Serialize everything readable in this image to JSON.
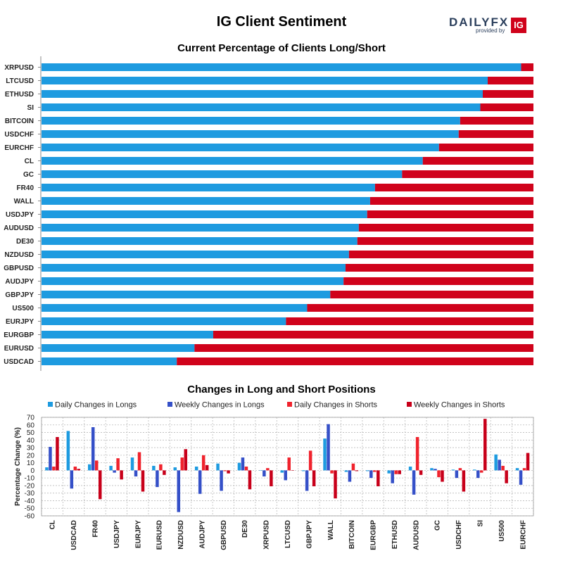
{
  "header": {
    "title": "IG Client Sentiment",
    "logo_text": "DAILYFX",
    "logo_sub": "provided by",
    "logo_badge": "IG"
  },
  "colors": {
    "long": "#1e9be0",
    "short": "#d0021b",
    "daily_long": "#1e9be0",
    "weekly_long": "#3550c8",
    "daily_short": "#f0232d",
    "weekly_short": "#c8001a"
  },
  "chart_data": [
    {
      "type": "bar",
      "orientation": "horizontal",
      "stacked": true,
      "title": "Current Percentage of Clients Long/Short",
      "xlim": [
        0,
        100
      ],
      "categories": [
        "XRPUSD",
        "LTCUSD",
        "ETHUSD",
        "SI",
        "BITCOIN",
        "USDCHF",
        "EURCHF",
        "CL",
        "GC",
        "FR40",
        "WALL",
        "USDJPY",
        "AUDUSD",
        "DE30",
        "NZDUSD",
        "GBPUSD",
        "AUDJPY",
        "GBPJPY",
        "US500",
        "EURJPY",
        "EURGBP",
        "EURUSD",
        "USDCAD"
      ],
      "series": [
        {
          "values": [
            97.5,
            90.7,
            89.7,
            89.2,
            85.1,
            84.8,
            80.8,
            77.5,
            73.3,
            67.8,
            66.8,
            66.2,
            64.5,
            64.2,
            62.5,
            61.8,
            61.4,
            58.7,
            54.0,
            49.7,
            34.9,
            31.1,
            27.5
          ]
        },
        {
          "values": [
            2.5,
            9.3,
            10.3,
            10.8,
            14.9,
            15.2,
            19.2,
            22.5,
            26.7,
            32.2,
            33.2,
            33.8,
            35.5,
            35.8,
            37.5,
            38.2,
            38.6,
            41.3,
            46.0,
            50.3,
            65.1,
            68.9,
            72.5
          ]
        }
      ]
    },
    {
      "type": "bar",
      "title": "Changes in Long and Short Positions",
      "ylabel": "Percentage Change (%)",
      "ylim": [
        -60,
        70
      ],
      "yticks": [
        70,
        60,
        50,
        40,
        30,
        20,
        10,
        0,
        -10,
        -20,
        -30,
        -40,
        -50,
        -60
      ],
      "categories": [
        "CL",
        "USDCAD",
        "FR40",
        "USDJPY",
        "EURJPY",
        "EURUSD",
        "NZDUSD",
        "AUDJPY",
        "GBPUSD",
        "DE30",
        "XRPUSD",
        "LTCUSD",
        "GBPJPY",
        "WALL",
        "BITCOIN",
        "EURGBP",
        "ETHUSD",
        "AUDUSD",
        "GC",
        "USDCHF",
        "SI",
        "US500",
        "EURCHF"
      ],
      "series": [
        {
          "name": "Daily Changes in Longs",
          "values": [
            4,
            52,
            8,
            6,
            17,
            6,
            4,
            5,
            9,
            10,
            0,
            -3,
            -1,
            42,
            -2,
            -1,
            -4,
            5,
            3,
            1,
            1,
            21,
            3
          ]
        },
        {
          "name": "Weekly Changes in Longs",
          "values": [
            31,
            -24,
            57,
            -3,
            -8,
            -22,
            -55,
            -31,
            -27,
            17,
            -8,
            -13,
            -27,
            61,
            -15,
            -10,
            -17,
            -32,
            2,
            -10,
            -10,
            14,
            -19
          ]
        },
        {
          "name": "Daily Changes in Shorts",
          "values": [
            5,
            5,
            13,
            16,
            24,
            8,
            17,
            20,
            -1,
            5,
            3,
            17,
            26,
            -4,
            9,
            -2,
            -5,
            44,
            -9,
            3,
            -3,
            6,
            3
          ]
        },
        {
          "name": "Weekly Changes in Shorts",
          "values": [
            44,
            2,
            -38,
            -12,
            -28,
            -6,
            28,
            7,
            -4,
            -25,
            -21,
            0,
            -21,
            -37,
            -1,
            -21,
            -5,
            -6,
            -15,
            -28,
            68,
            -17,
            23
          ]
        }
      ]
    }
  ]
}
